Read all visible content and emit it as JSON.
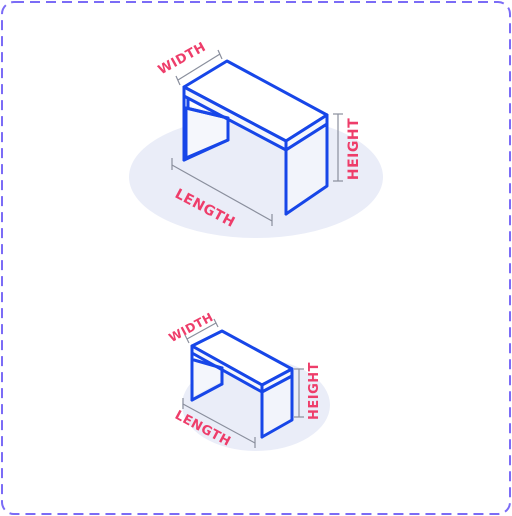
{
  "figures": [
    {
      "labels": {
        "width": "WIDTH",
        "length": "LENGTH",
        "height": "HEIGHT"
      }
    },
    {
      "labels": {
        "width": "WIDTH",
        "length": "LENGTH",
        "height": "HEIGHT"
      }
    }
  ],
  "colors": {
    "border": "#7b6cf6",
    "outline": "#1746e8",
    "label": "#ee3d6a",
    "floor": "#eaedf8",
    "dimension": "#8a8f9d"
  }
}
